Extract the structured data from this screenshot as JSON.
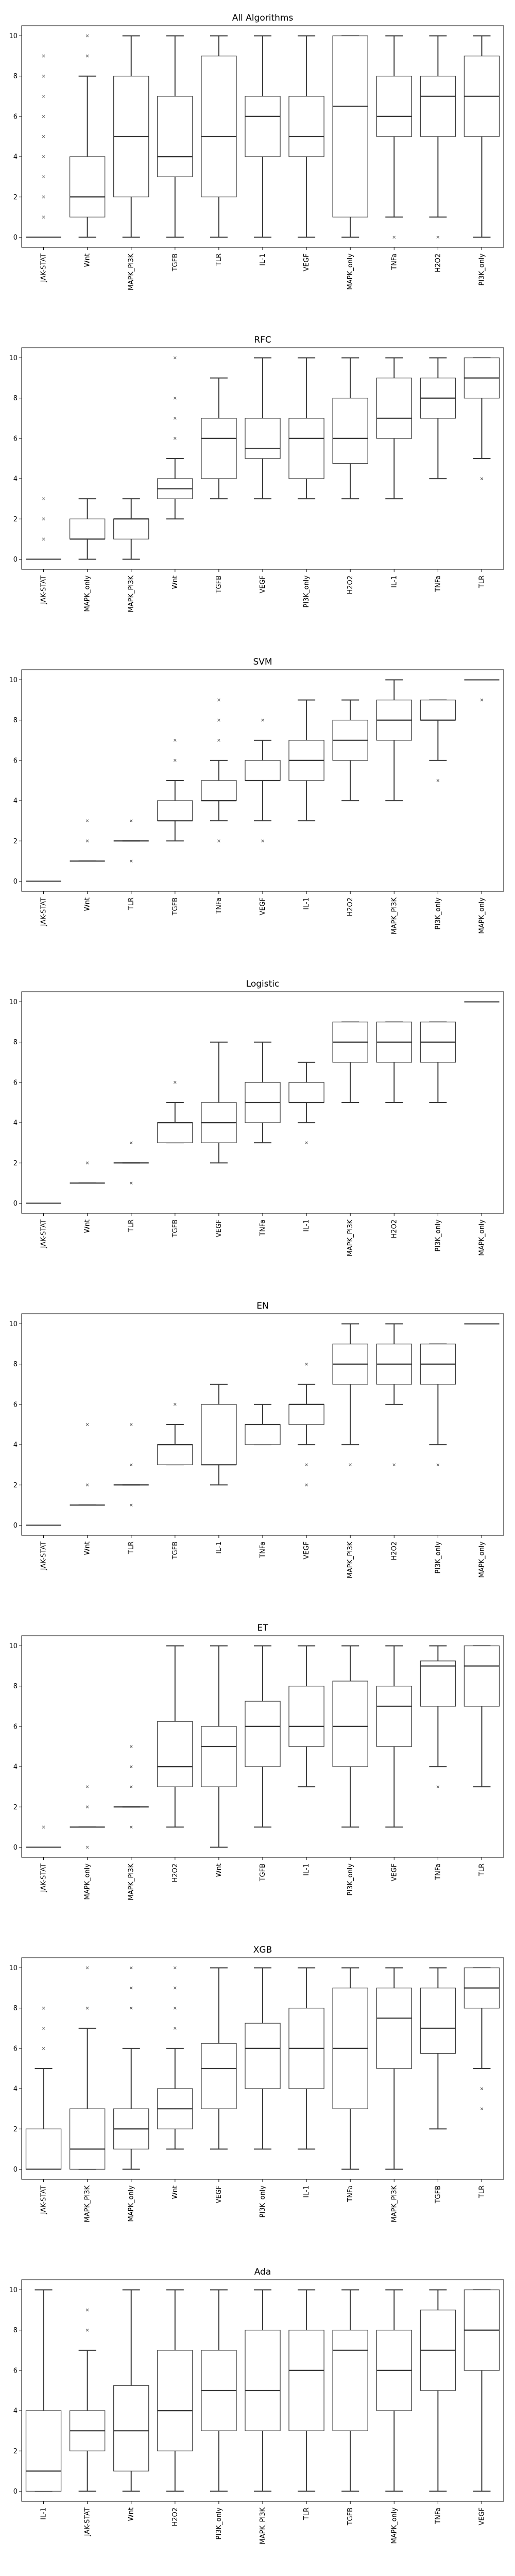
{
  "chart_data": [
    {
      "type": "box",
      "title": "All Algorithms",
      "ylim": [
        -0.5,
        10.5
      ],
      "yticks": [
        0,
        2,
        4,
        6,
        8,
        10
      ],
      "categories": [
        "JAK-STAT",
        "Wnt",
        "MAPK_PI3K",
        "TGFB",
        "TLR",
        "IL-1",
        "VEGF",
        "MAPK_only",
        "TNFa",
        "H2O2",
        "PI3K_only"
      ],
      "boxes": [
        {
          "wl": 0,
          "q1": 0,
          "med": 0,
          "q3": 0,
          "wh": 0,
          "fliers": [
            1,
            2,
            3,
            4,
            5,
            6,
            7,
            8,
            9
          ]
        },
        {
          "wl": 0,
          "q1": 1,
          "med": 2,
          "q3": 4,
          "wh": 8,
          "fliers": [
            9,
            10
          ]
        },
        {
          "wl": 0,
          "q1": 2,
          "med": 5,
          "q3": 8,
          "wh": 10,
          "fliers": []
        },
        {
          "wl": 0,
          "q1": 3,
          "med": 4,
          "q3": 7,
          "wh": 10,
          "fliers": []
        },
        {
          "wl": 0,
          "q1": 2,
          "med": 5,
          "q3": 9,
          "wh": 10,
          "fliers": []
        },
        {
          "wl": 0,
          "q1": 4,
          "med": 6,
          "q3": 7,
          "wh": 10,
          "fliers": []
        },
        {
          "wl": 0,
          "q1": 4,
          "med": 5,
          "q3": 7,
          "wh": 10,
          "fliers": []
        },
        {
          "wl": 0,
          "q1": 1,
          "med": 6.5,
          "q3": 10,
          "wh": 10,
          "fliers": []
        },
        {
          "wl": 1,
          "q1": 5,
          "med": 6,
          "q3": 8,
          "wh": 10,
          "fliers": [
            0
          ]
        },
        {
          "wl": 1,
          "q1": 5,
          "med": 7,
          "q3": 8,
          "wh": 10,
          "fliers": [
            0
          ]
        },
        {
          "wl": 0,
          "q1": 5,
          "med": 7,
          "q3": 9,
          "wh": 10,
          "fliers": []
        }
      ]
    },
    {
      "type": "box",
      "title": "RFC",
      "ylim": [
        -0.5,
        10.5
      ],
      "yticks": [
        0,
        2,
        4,
        6,
        8,
        10
      ],
      "categories": [
        "JAK-STAT",
        "MAPK_only",
        "MAPK_PI3K",
        "Wnt",
        "TGFB",
        "VEGF",
        "PI3K_only",
        "H2O2",
        "IL-1",
        "TNFa",
        "TLR"
      ],
      "boxes": [
        {
          "wl": 0,
          "q1": 0,
          "med": 0,
          "q3": 0,
          "wh": 0,
          "fliers": [
            1,
            2,
            3
          ]
        },
        {
          "wl": 0,
          "q1": 1,
          "med": 1,
          "q3": 2,
          "wh": 3,
          "fliers": []
        },
        {
          "wl": 0,
          "q1": 1,
          "med": 2,
          "q3": 2,
          "wh": 3,
          "fliers": []
        },
        {
          "wl": 2,
          "q1": 3,
          "med": 3.5,
          "q3": 4,
          "wh": 5,
          "fliers": [
            6,
            7,
            8,
            10
          ]
        },
        {
          "wl": 3,
          "q1": 4,
          "med": 6,
          "q3": 7,
          "wh": 9,
          "fliers": []
        },
        {
          "wl": 3,
          "q1": 5,
          "med": 5.5,
          "q3": 7,
          "wh": 10,
          "fliers": []
        },
        {
          "wl": 3,
          "q1": 4,
          "med": 6,
          "q3": 7,
          "wh": 10,
          "fliers": []
        },
        {
          "wl": 3,
          "q1": 4.75,
          "med": 6,
          "q3": 8,
          "wh": 10,
          "fliers": []
        },
        {
          "wl": 3,
          "q1": 6,
          "med": 7,
          "q3": 9,
          "wh": 10,
          "fliers": []
        },
        {
          "wl": 4,
          "q1": 7,
          "med": 8,
          "q3": 9,
          "wh": 10,
          "fliers": []
        },
        {
          "wl": 5,
          "q1": 8,
          "med": 9,
          "q3": 10,
          "wh": 10,
          "fliers": [
            4
          ]
        }
      ]
    },
    {
      "type": "box",
      "title": "SVM",
      "ylim": [
        -0.5,
        10.5
      ],
      "yticks": [
        0,
        2,
        4,
        6,
        8,
        10
      ],
      "categories": [
        "JAK-STAT",
        "Wnt",
        "TLR",
        "TGFB",
        "TNFa",
        "VEGF",
        "IL-1",
        "H2O2",
        "MAPK_PI3K",
        "PI3K_only",
        "MAPK_only"
      ],
      "boxes": [
        {
          "wl": 0,
          "q1": 0,
          "med": 0,
          "q3": 0,
          "wh": 0,
          "fliers": []
        },
        {
          "wl": 1,
          "q1": 1,
          "med": 1,
          "q3": 1,
          "wh": 1,
          "fliers": [
            2,
            3
          ]
        },
        {
          "wl": 2,
          "q1": 2,
          "med": 2,
          "q3": 2,
          "wh": 2,
          "fliers": [
            1,
            3
          ]
        },
        {
          "wl": 2,
          "q1": 3,
          "med": 3,
          "q3": 4,
          "wh": 5,
          "fliers": [
            6,
            7
          ]
        },
        {
          "wl": 3,
          "q1": 4,
          "med": 4,
          "q3": 5,
          "wh": 6,
          "fliers": [
            2,
            7,
            8,
            9
          ]
        },
        {
          "wl": 3,
          "q1": 5,
          "med": 5,
          "q3": 6,
          "wh": 7,
          "fliers": [
            2,
            8
          ]
        },
        {
          "wl": 3,
          "q1": 5,
          "med": 6,
          "q3": 7,
          "wh": 9,
          "fliers": []
        },
        {
          "wl": 4,
          "q1": 6,
          "med": 7,
          "q3": 8,
          "wh": 9,
          "fliers": []
        },
        {
          "wl": 4,
          "q1": 7,
          "med": 8,
          "q3": 9,
          "wh": 10,
          "fliers": []
        },
        {
          "wl": 6,
          "q1": 8,
          "med": 8,
          "q3": 9,
          "wh": 9,
          "fliers": [
            5
          ]
        },
        {
          "wl": 10,
          "q1": 10,
          "med": 10,
          "q3": 10,
          "wh": 10,
          "fliers": [
            9
          ]
        }
      ]
    },
    {
      "type": "box",
      "title": "Logistic",
      "ylim": [
        -0.5,
        10.5
      ],
      "yticks": [
        0,
        2,
        4,
        6,
        8,
        10
      ],
      "categories": [
        "JAK-STAT",
        "Wnt",
        "TLR",
        "TGFB",
        "VEGF",
        "TNFa",
        "IL-1",
        "MAPK_PI3K",
        "H2O2",
        "PI3K_only",
        "MAPK_only"
      ],
      "boxes": [
        {
          "wl": 0,
          "q1": 0,
          "med": 0,
          "q3": 0,
          "wh": 0,
          "fliers": []
        },
        {
          "wl": 1,
          "q1": 1,
          "med": 1,
          "q3": 1,
          "wh": 1,
          "fliers": [
            2
          ]
        },
        {
          "wl": 2,
          "q1": 2,
          "med": 2,
          "q3": 2,
          "wh": 2,
          "fliers": [
            1,
            3
          ]
        },
        {
          "wl": 3,
          "q1": 3,
          "med": 4,
          "q3": 4,
          "wh": 5,
          "fliers": [
            6
          ]
        },
        {
          "wl": 2,
          "q1": 3,
          "med": 4,
          "q3": 5,
          "wh": 8,
          "fliers": []
        },
        {
          "wl": 3,
          "q1": 4,
          "med": 5,
          "q3": 6,
          "wh": 8,
          "fliers": []
        },
        {
          "wl": 4,
          "q1": 5,
          "med": 5,
          "q3": 6,
          "wh": 7,
          "fliers": [
            3
          ]
        },
        {
          "wl": 5,
          "q1": 7,
          "med": 8,
          "q3": 9,
          "wh": 9,
          "fliers": []
        },
        {
          "wl": 5,
          "q1": 7,
          "med": 8,
          "q3": 9,
          "wh": 9,
          "fliers": []
        },
        {
          "wl": 5,
          "q1": 7,
          "med": 8,
          "q3": 9,
          "wh": 9,
          "fliers": []
        },
        {
          "wl": 10,
          "q1": 10,
          "med": 10,
          "q3": 10,
          "wh": 10,
          "fliers": []
        }
      ]
    },
    {
      "type": "box",
      "title": "EN",
      "ylim": [
        -0.5,
        10.5
      ],
      "yticks": [
        0,
        2,
        4,
        6,
        8,
        10
      ],
      "categories": [
        "JAK-STAT",
        "Wnt",
        "TLR",
        "TGFB",
        "IL-1",
        "TNFa",
        "VEGF",
        "MAPK_PI3K",
        "H2O2",
        "PI3K_only",
        "MAPK_only"
      ],
      "boxes": [
        {
          "wl": 0,
          "q1": 0,
          "med": 0,
          "q3": 0,
          "wh": 0,
          "fliers": []
        },
        {
          "wl": 1,
          "q1": 1,
          "med": 1,
          "q3": 1,
          "wh": 1,
          "fliers": [
            2,
            5
          ]
        },
        {
          "wl": 2,
          "q1": 2,
          "med": 2,
          "q3": 2,
          "wh": 2,
          "fliers": [
            1,
            3,
            5
          ]
        },
        {
          "wl": 3,
          "q1": 3,
          "med": 4,
          "q3": 4,
          "wh": 5,
          "fliers": [
            6
          ]
        },
        {
          "wl": 2,
          "q1": 3,
          "med": 3,
          "q3": 6,
          "wh": 7,
          "fliers": []
        },
        {
          "wl": 4,
          "q1": 4,
          "med": 5,
          "q3": 5,
          "wh": 6,
          "fliers": []
        },
        {
          "wl": 4,
          "q1": 5,
          "med": 6,
          "q3": 6,
          "wh": 7,
          "fliers": [
            2,
            3,
            8
          ]
        },
        {
          "wl": 4,
          "q1": 7,
          "med": 8,
          "q3": 9,
          "wh": 10,
          "fliers": [
            3
          ]
        },
        {
          "wl": 6,
          "q1": 7,
          "med": 8,
          "q3": 9,
          "wh": 10,
          "fliers": [
            3
          ]
        },
        {
          "wl": 4,
          "q1": 7,
          "med": 8,
          "q3": 9,
          "wh": 9,
          "fliers": [
            3
          ]
        },
        {
          "wl": 10,
          "q1": 10,
          "med": 10,
          "q3": 10,
          "wh": 10,
          "fliers": []
        }
      ]
    },
    {
      "type": "box",
      "title": "ET",
      "ylim": [
        -0.5,
        10.5
      ],
      "yticks": [
        0,
        2,
        4,
        6,
        8,
        10
      ],
      "categories": [
        "JAK-STAT",
        "MAPK_only",
        "MAPK_PI3K",
        "H2O2",
        "Wnt",
        "TGFB",
        "IL-1",
        "PI3K_only",
        "VEGF",
        "TNFa",
        "TLR"
      ],
      "boxes": [
        {
          "wl": 0,
          "q1": 0,
          "med": 0,
          "q3": 0,
          "wh": 0,
          "fliers": [
            1
          ]
        },
        {
          "wl": 1,
          "q1": 1,
          "med": 1,
          "q3": 1,
          "wh": 1,
          "fliers": [
            0,
            2,
            3
          ]
        },
        {
          "wl": 2,
          "q1": 2,
          "med": 2,
          "q3": 2,
          "wh": 2,
          "fliers": [
            1,
            3,
            4,
            5
          ]
        },
        {
          "wl": 1,
          "q1": 3,
          "med": 4,
          "q3": 6.25,
          "wh": 10,
          "fliers": []
        },
        {
          "wl": 0,
          "q1": 3,
          "med": 5,
          "q3": 6,
          "wh": 10,
          "fliers": []
        },
        {
          "wl": 1,
          "q1": 4,
          "med": 6,
          "q3": 7.25,
          "wh": 10,
          "fliers": []
        },
        {
          "wl": 3,
          "q1": 5,
          "med": 6,
          "q3": 8,
          "wh": 10,
          "fliers": []
        },
        {
          "wl": 1,
          "q1": 4,
          "med": 6,
          "q3": 8.25,
          "wh": 10,
          "fliers": []
        },
        {
          "wl": 1,
          "q1": 5,
          "med": 7,
          "q3": 8,
          "wh": 10,
          "fliers": []
        },
        {
          "wl": 4,
          "q1": 7,
          "med": 9,
          "q3": 9.25,
          "wh": 10,
          "fliers": [
            3
          ]
        },
        {
          "wl": 3,
          "q1": 7,
          "med": 9,
          "q3": 10,
          "wh": 10,
          "fliers": []
        }
      ]
    },
    {
      "type": "box",
      "title": "XGB",
      "ylim": [
        -0.5,
        10.5
      ],
      "yticks": [
        0,
        2,
        4,
        6,
        8,
        10
      ],
      "categories": [
        "JAK-STAT",
        "MAPK_PI3K",
        "MAPK_only",
        "Wnt",
        "VEGF",
        "PI3K_only",
        "IL-1",
        "TNFa",
        "MAPK_PI3K",
        "TGFB",
        "TLR"
      ],
      "boxes": [
        {
          "wl": 0,
          "q1": 0,
          "med": 0,
          "q3": 2,
          "wh": 5,
          "fliers": [
            6,
            7,
            8
          ]
        },
        {
          "wl": 0,
          "q1": 0,
          "med": 1,
          "q3": 3,
          "wh": 7,
          "fliers": [
            8,
            10
          ]
        },
        {
          "wl": 0,
          "q1": 1,
          "med": 2,
          "q3": 3,
          "wh": 6,
          "fliers": [
            8,
            9,
            10
          ]
        },
        {
          "wl": 1,
          "q1": 2,
          "med": 3,
          "q3": 4,
          "wh": 6,
          "fliers": [
            7,
            8,
            9,
            10
          ]
        },
        {
          "wl": 1,
          "q1": 3,
          "med": 5,
          "q3": 6.25,
          "wh": 10,
          "fliers": []
        },
        {
          "wl": 1,
          "q1": 4,
          "med": 6,
          "q3": 7.25,
          "wh": 10,
          "fliers": []
        },
        {
          "wl": 1,
          "q1": 4,
          "med": 6,
          "q3": 8,
          "wh": 10,
          "fliers": []
        },
        {
          "wl": 0,
          "q1": 3,
          "med": 6,
          "q3": 9,
          "wh": 10,
          "fliers": []
        },
        {
          "wl": 0,
          "q1": 5,
          "med": 7.5,
          "q3": 9,
          "wh": 10,
          "fliers": []
        },
        {
          "wl": 2,
          "q1": 5.75,
          "med": 7,
          "q3": 9,
          "wh": 10,
          "fliers": []
        },
        {
          "wl": 5,
          "q1": 8,
          "med": 9,
          "q3": 10,
          "wh": 10,
          "fliers": [
            3,
            4
          ]
        }
      ]
    },
    {
      "type": "box",
      "title": "Ada",
      "ylim": [
        -0.5,
        10.5
      ],
      "yticks": [
        0,
        2,
        4,
        6,
        8,
        10
      ],
      "categories": [
        "IL-1",
        "JAK-STAT",
        "Wnt",
        "H2O2",
        "PI3K_only",
        "MAPK_PI3K",
        "TLR",
        "TGFB",
        "MAPK_only",
        "TNFa",
        "VEGF"
      ],
      "boxes": [
        {
          "wl": 0,
          "q1": 0,
          "med": 1,
          "q3": 4,
          "wh": 10,
          "fliers": []
        },
        {
          "wl": 0,
          "q1": 2,
          "med": 3,
          "q3": 4,
          "wh": 7,
          "fliers": [
            8,
            9
          ]
        },
        {
          "wl": 0,
          "q1": 1,
          "med": 3,
          "q3": 5.25,
          "wh": 10,
          "fliers": []
        },
        {
          "wl": 0,
          "q1": 2,
          "med": 4,
          "q3": 7,
          "wh": 10,
          "fliers": []
        },
        {
          "wl": 0,
          "q1": 3,
          "med": 5,
          "q3": 7,
          "wh": 10,
          "fliers": []
        },
        {
          "wl": 0,
          "q1": 3,
          "med": 5,
          "q3": 8,
          "wh": 10,
          "fliers": []
        },
        {
          "wl": 0,
          "q1": 3,
          "med": 6,
          "q3": 8,
          "wh": 10,
          "fliers": []
        },
        {
          "wl": 0,
          "q1": 3,
          "med": 7,
          "q3": 8,
          "wh": 10,
          "fliers": []
        },
        {
          "wl": 0,
          "q1": 4,
          "med": 6,
          "q3": 8,
          "wh": 10,
          "fliers": []
        },
        {
          "wl": 0,
          "q1": 5,
          "med": 7,
          "q3": 9,
          "wh": 10,
          "fliers": []
        },
        {
          "wl": 0,
          "q1": 6,
          "med": 8,
          "q3": 10,
          "wh": 10,
          "fliers": []
        }
      ]
    }
  ]
}
